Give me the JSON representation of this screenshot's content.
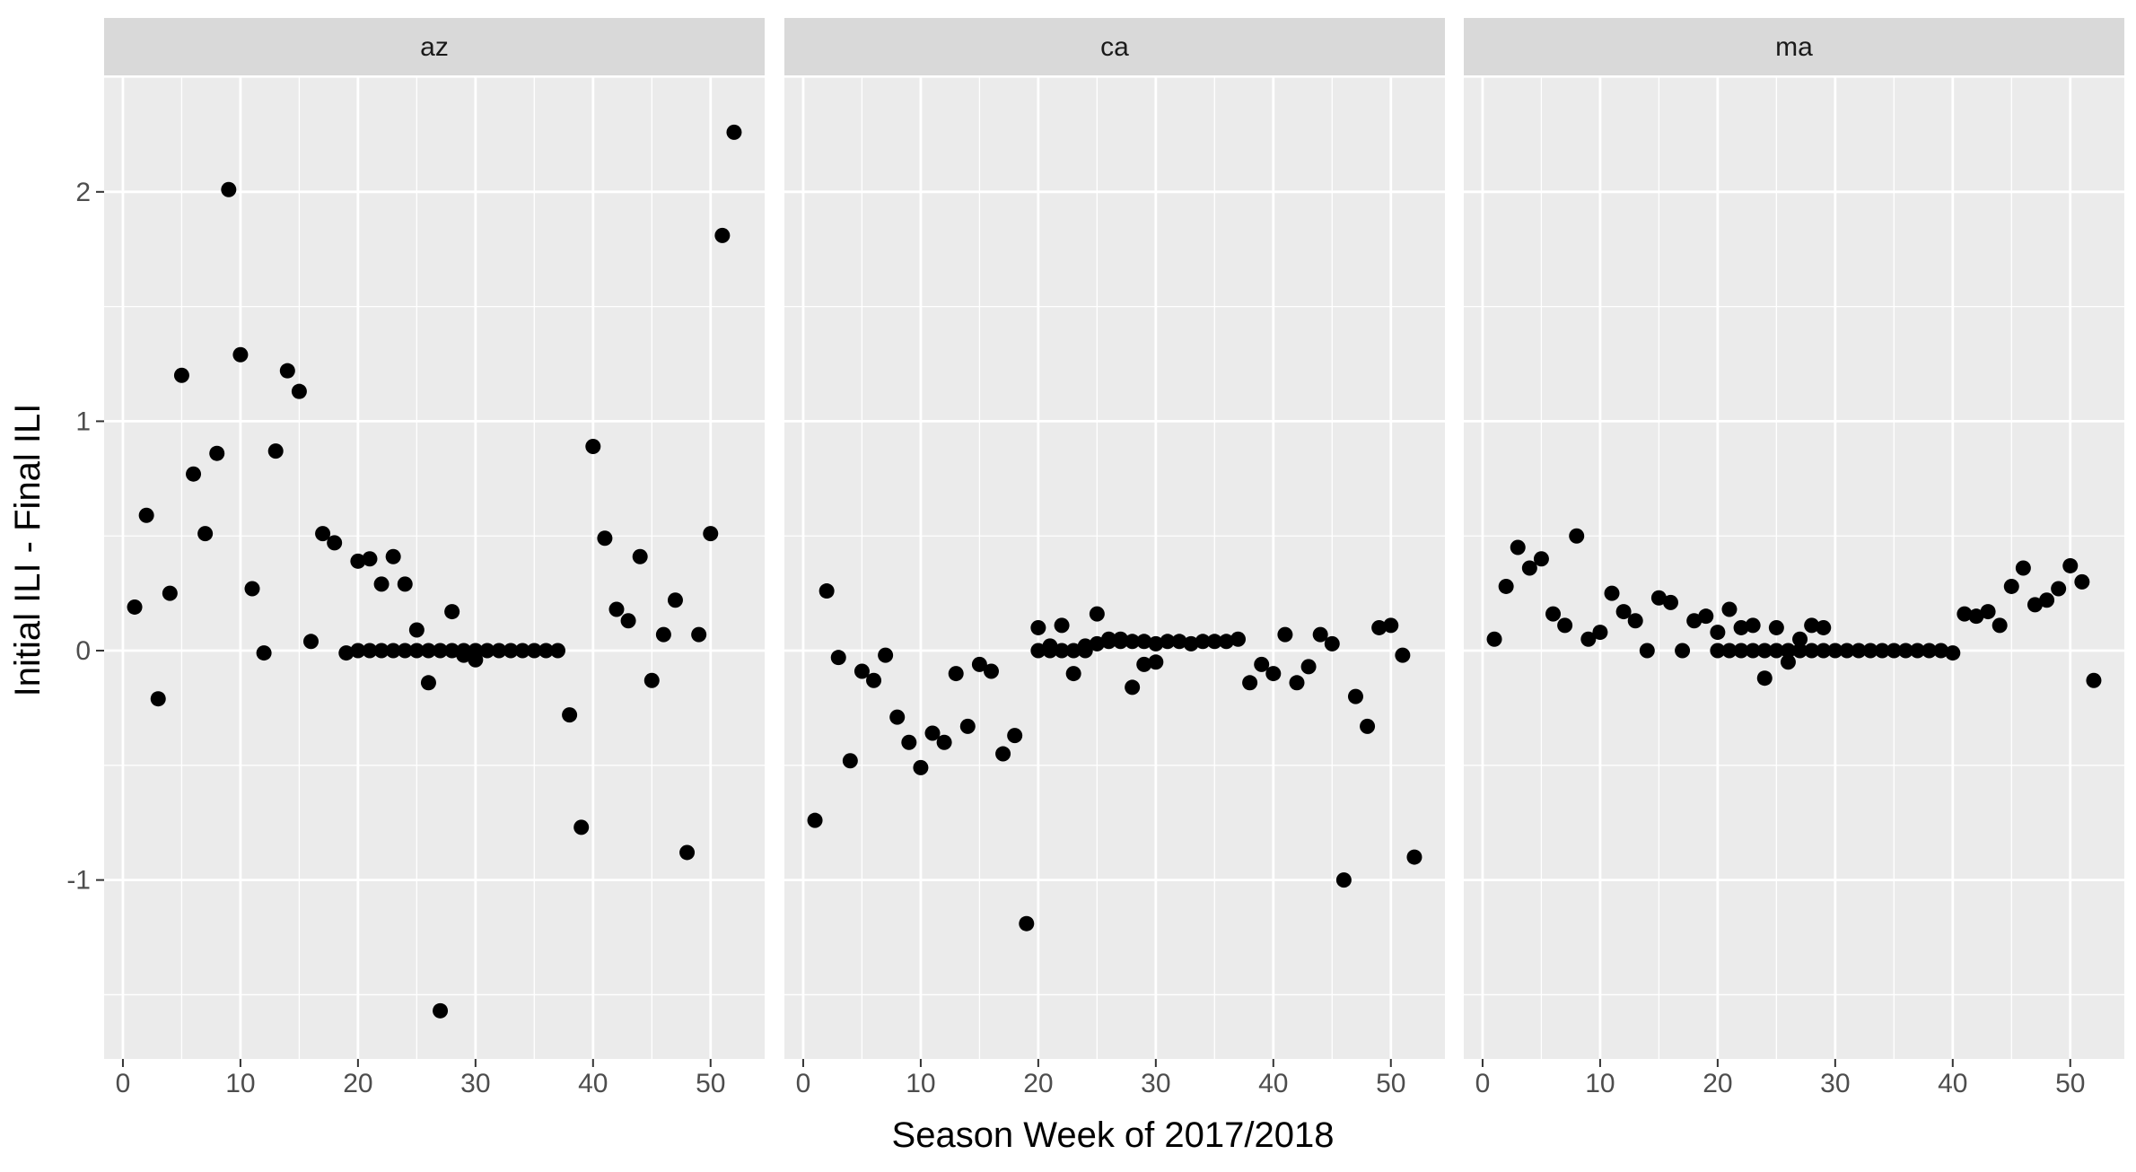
{
  "chart_data": {
    "type": "scatter",
    "xlabel": "Season Week of 2017/2018",
    "ylabel": "Initial ILI - Final ILI",
    "xlim": [
      -1.6,
      54.6
    ],
    "ylim": [
      -1.78,
      2.5
    ],
    "x_ticks": [
      0,
      10,
      20,
      30,
      40,
      50
    ],
    "y_ticks": [
      -1,
      0,
      1,
      2
    ],
    "grid": true,
    "point_color": "#000000",
    "panel_background": "#ebebeb",
    "strip_background": "#d9d9d9",
    "panels": [
      {
        "name": "az",
        "points": [
          [
            1,
            0.19
          ],
          [
            2,
            0.59
          ],
          [
            3,
            -0.21
          ],
          [
            4,
            0.25
          ],
          [
            5,
            1.2
          ],
          [
            6,
            0.77
          ],
          [
            7,
            0.51
          ],
          [
            8,
            0.86
          ],
          [
            9,
            2.01
          ],
          [
            10,
            1.29
          ],
          [
            11,
            0.27
          ],
          [
            12,
            -0.01
          ],
          [
            13,
            0.87
          ],
          [
            14,
            1.22
          ],
          [
            15,
            1.13
          ],
          [
            16,
            0.04
          ],
          [
            17,
            0.51
          ],
          [
            18,
            0.47
          ],
          [
            19,
            -0.01
          ],
          [
            20,
            0.39
          ],
          [
            21,
            0.4
          ],
          [
            22,
            0.29
          ],
          [
            23,
            0.41
          ],
          [
            24,
            0.29
          ],
          [
            25,
            0.09
          ],
          [
            26,
            -0.14
          ],
          [
            27,
            -1.57
          ],
          [
            28,
            0.17
          ],
          [
            29,
            -0.02
          ],
          [
            30,
            -0.04
          ],
          [
            31,
            0
          ],
          [
            32,
            0
          ],
          [
            33,
            0
          ],
          [
            34,
            0
          ],
          [
            35,
            0
          ],
          [
            36,
            0
          ],
          [
            37,
            0
          ],
          [
            38,
            -0.28
          ],
          [
            39,
            -0.77
          ],
          [
            40,
            0.89
          ],
          [
            41,
            0.49
          ],
          [
            42,
            0.18
          ],
          [
            43,
            0.13
          ],
          [
            44,
            0.41
          ],
          [
            45,
            -0.13
          ],
          [
            46,
            0.07
          ],
          [
            47,
            0.22
          ],
          [
            48,
            -0.88
          ],
          [
            49,
            0.07
          ],
          [
            50,
            0.51
          ],
          [
            51,
            1.81
          ],
          [
            52,
            2.26
          ],
          [
            20,
            0
          ],
          [
            21,
            0
          ],
          [
            22,
            0
          ],
          [
            23,
            0
          ],
          [
            24,
            0
          ],
          [
            25,
            0
          ],
          [
            26,
            0
          ],
          [
            27,
            0
          ],
          [
            28,
            0
          ],
          [
            29,
            0
          ],
          [
            30,
            0
          ]
        ]
      },
      {
        "name": "ca",
        "points": [
          [
            1,
            -0.74
          ],
          [
            2,
            0.26
          ],
          [
            3,
            -0.03
          ],
          [
            4,
            -0.48
          ],
          [
            5,
            -0.09
          ],
          [
            6,
            -0.13
          ],
          [
            7,
            -0.02
          ],
          [
            8,
            -0.29
          ],
          [
            9,
            -0.4
          ],
          [
            10,
            -0.51
          ],
          [
            11,
            -0.36
          ],
          [
            12,
            -0.4
          ],
          [
            13,
            -0.1
          ],
          [
            14,
            -0.33
          ],
          [
            15,
            -0.06
          ],
          [
            16,
            -0.09
          ],
          [
            17,
            -0.45
          ],
          [
            18,
            -0.37
          ],
          [
            19,
            -1.19
          ],
          [
            20,
            0.1
          ],
          [
            21,
            0.02
          ],
          [
            22,
            0.11
          ],
          [
            23,
            -0.1
          ],
          [
            24,
            0.02
          ],
          [
            25,
            0.16
          ],
          [
            26,
            0.05
          ],
          [
            27,
            0.04
          ],
          [
            28,
            -0.16
          ],
          [
            29,
            -0.06
          ],
          [
            30,
            -0.05
          ],
          [
            31,
            0.04
          ],
          [
            32,
            0.04
          ],
          [
            33,
            0.03
          ],
          [
            34,
            0.04
          ],
          [
            35,
            0.04
          ],
          [
            36,
            0.04
          ],
          [
            37,
            0.05
          ],
          [
            38,
            -0.14
          ],
          [
            39,
            -0.06
          ],
          [
            40,
            -0.1
          ],
          [
            41,
            0.07
          ],
          [
            42,
            -0.14
          ],
          [
            43,
            -0.07
          ],
          [
            44,
            0.07
          ],
          [
            45,
            0.03
          ],
          [
            46,
            -1.0
          ],
          [
            47,
            -0.2
          ],
          [
            48,
            -0.33
          ],
          [
            49,
            0.1
          ],
          [
            50,
            0.11
          ],
          [
            51,
            -0.02
          ],
          [
            52,
            -0.9
          ],
          [
            20,
            0
          ],
          [
            21,
            0
          ],
          [
            22,
            0
          ],
          [
            23,
            0
          ],
          [
            24,
            0
          ],
          [
            25,
            0.03
          ],
          [
            26,
            0.04
          ],
          [
            27,
            0.05
          ],
          [
            28,
            0.04
          ],
          [
            29,
            0.04
          ],
          [
            30,
            0.03
          ]
        ]
      },
      {
        "name": "ma",
        "points": [
          [
            1,
            0.05
          ],
          [
            2,
            0.28
          ],
          [
            3,
            0.45
          ],
          [
            4,
            0.36
          ],
          [
            5,
            0.4
          ],
          [
            6,
            0.16
          ],
          [
            7,
            0.11
          ],
          [
            8,
            0.5
          ],
          [
            9,
            0.05
          ],
          [
            10,
            0.08
          ],
          [
            11,
            0.25
          ],
          [
            12,
            0.17
          ],
          [
            13,
            0.13
          ],
          [
            14,
            0
          ],
          [
            15,
            0.23
          ],
          [
            16,
            0.21
          ],
          [
            17,
            0
          ],
          [
            18,
            0.13
          ],
          [
            19,
            0.15
          ],
          [
            20,
            0.08
          ],
          [
            21,
            0.18
          ],
          [
            22,
            0.1
          ],
          [
            23,
            0.11
          ],
          [
            24,
            -0.12
          ],
          [
            25,
            0.1
          ],
          [
            26,
            -0.05
          ],
          [
            27,
            0.05
          ],
          [
            28,
            0.11
          ],
          [
            29,
            0.1
          ],
          [
            30,
            0
          ],
          [
            31,
            0
          ],
          [
            32,
            0
          ],
          [
            33,
            0
          ],
          [
            34,
            0
          ],
          [
            35,
            0
          ],
          [
            36,
            0
          ],
          [
            37,
            0
          ],
          [
            38,
            0
          ],
          [
            39,
            0
          ],
          [
            40,
            -0.01
          ],
          [
            41,
            0.16
          ],
          [
            42,
            0.15
          ],
          [
            43,
            0.17
          ],
          [
            44,
            0.11
          ],
          [
            45,
            0.28
          ],
          [
            46,
            0.36
          ],
          [
            47,
            0.2
          ],
          [
            48,
            0.22
          ],
          [
            49,
            0.27
          ],
          [
            50,
            0.37
          ],
          [
            51,
            0.3
          ],
          [
            52,
            -0.13
          ],
          [
            20,
            0
          ],
          [
            21,
            0
          ],
          [
            22,
            0
          ],
          [
            23,
            0
          ],
          [
            24,
            0
          ],
          [
            25,
            0
          ],
          [
            26,
            0
          ],
          [
            27,
            0
          ],
          [
            28,
            0
          ],
          [
            29,
            0
          ]
        ]
      }
    ]
  }
}
